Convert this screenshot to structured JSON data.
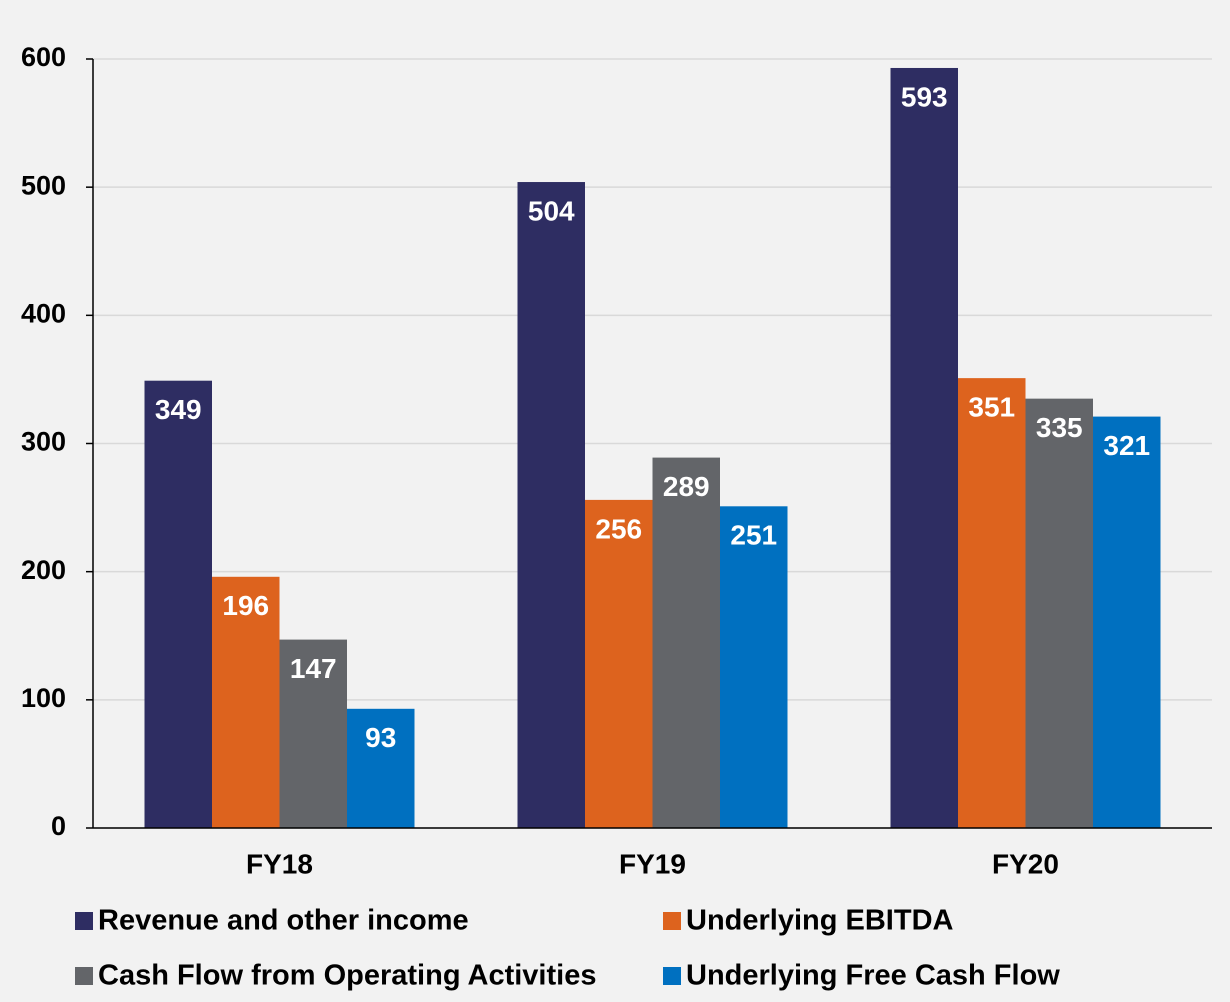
{
  "chart_data": {
    "type": "bar",
    "categories": [
      "FY18",
      "FY19",
      "FY20"
    ],
    "series": [
      {
        "name": "Revenue and other income",
        "color": "#2e2d62",
        "values": [
          349,
          504,
          593
        ]
      },
      {
        "name": "Underlying EBITDA",
        "color": "#dd631e",
        "values": [
          196,
          256,
          351
        ]
      },
      {
        "name": "Cash Flow from Operating Activities",
        "color": "#636569",
        "values": [
          147,
          289,
          335
        ]
      },
      {
        "name": "Underlying Free Cash Flow",
        "color": "#0070c0",
        "values": [
          93,
          251,
          321
        ]
      }
    ],
    "ylim": [
      0,
      600
    ],
    "yticks": [
      0,
      100,
      200,
      300,
      400,
      500,
      600
    ],
    "grid": true,
    "legend": "bottom"
  }
}
